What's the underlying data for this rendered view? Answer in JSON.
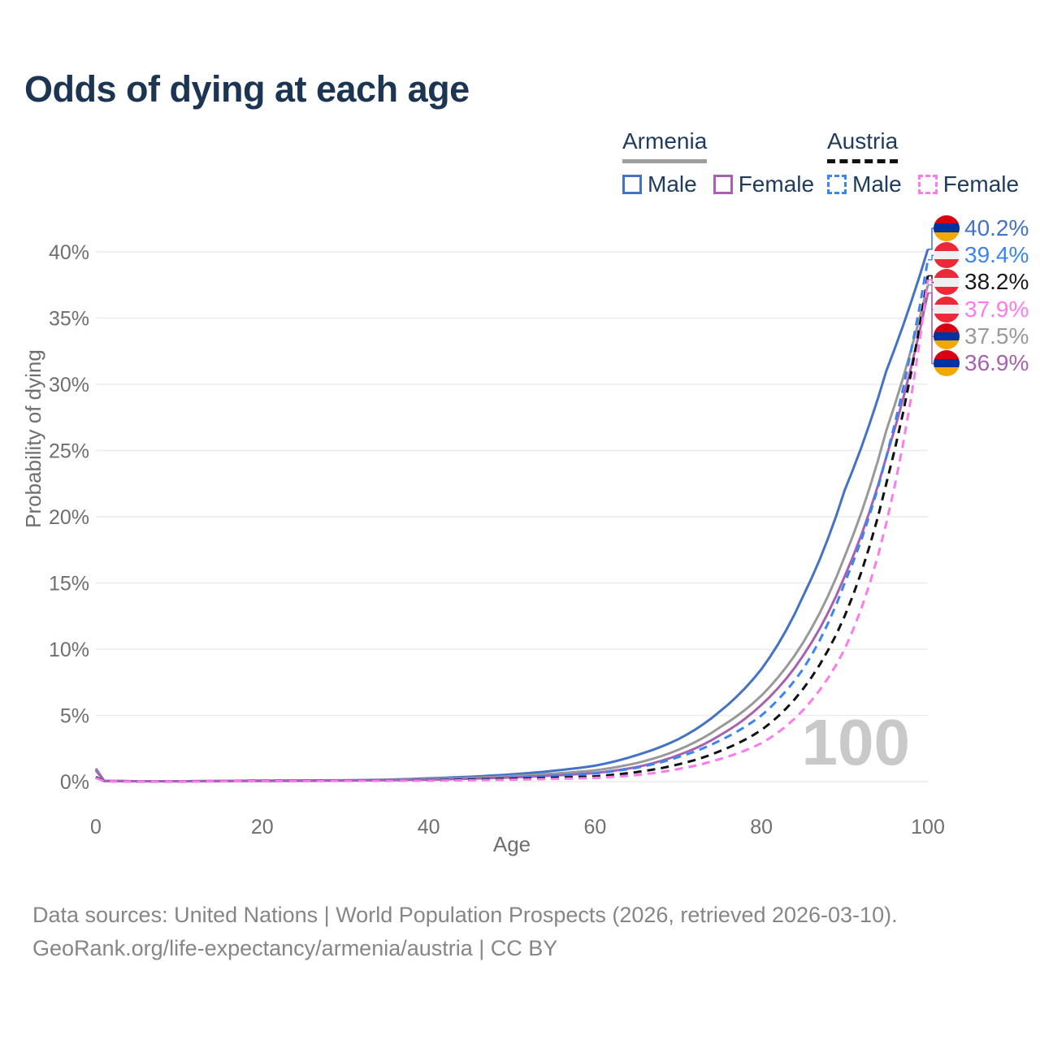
{
  "title": "Odds of dying at each age",
  "legend": {
    "groups": [
      {
        "label": "Armenia",
        "underline_style": "solid",
        "underline_color": "#9e9e9e",
        "items": [
          {
            "label": "Male",
            "color": "#4472C4",
            "style": "solid"
          },
          {
            "label": "Female",
            "color": "#A861B0",
            "style": "solid"
          }
        ]
      },
      {
        "label": "Austria",
        "underline_style": "dashed",
        "underline_color": "#111111",
        "items": [
          {
            "label": "Male",
            "color": "#3A84F4",
            "style": "dashed"
          },
          {
            "label": "Female",
            "color": "#FB7BEC",
            "style": "dashed"
          }
        ]
      }
    ]
  },
  "axes": {
    "x": {
      "label": "Age",
      "ticks": [
        0,
        20,
        40,
        60,
        80,
        100
      ],
      "range": [
        0,
        100
      ]
    },
    "y": {
      "label": "Probability of dying",
      "ticks": [
        0,
        5,
        10,
        15,
        20,
        25,
        30,
        35,
        40
      ],
      "tick_suffix": "%",
      "range": [
        0,
        40
      ]
    }
  },
  "watermark": "100",
  "flags": {
    "armenia": {
      "stripes": [
        "#D90012",
        "#0033A0",
        "#F2A800"
      ]
    },
    "austria": {
      "stripes": [
        "#ED2939",
        "#EFEFF1",
        "#ED2939"
      ]
    }
  },
  "chart_data": {
    "type": "line",
    "title": "Odds of dying at each age",
    "xlabel": "Age",
    "ylabel": "Probability of dying",
    "xlim": [
      0,
      100
    ],
    "ylim_percent": [
      0,
      40
    ],
    "grid": "horizontal",
    "legend_position": "top-right",
    "ages": [
      0,
      1,
      5,
      10,
      15,
      20,
      25,
      30,
      35,
      40,
      45,
      50,
      55,
      60,
      65,
      70,
      75,
      80,
      85,
      90,
      95,
      100
    ],
    "series": [
      {
        "id": "armenia-male",
        "name": "Armenia Male",
        "color": "#4472C4",
        "dash": false,
        "end_label": "40.2%",
        "values_percent": [
          0.98,
          0.06,
          0.03,
          0.03,
          0.05,
          0.08,
          0.09,
          0.1,
          0.15,
          0.25,
          0.37,
          0.55,
          0.82,
          1.2,
          2.0,
          3.2,
          5.3,
          8.5,
          14.0,
          22.0,
          31.0,
          40.2
        ]
      },
      {
        "id": "armenia-both",
        "name": "Armenia",
        "color": "#999999",
        "dash": false,
        "end_label": "37.5%",
        "values_percent": [
          0.92,
          0.055,
          0.028,
          0.028,
          0.045,
          0.065,
          0.075,
          0.09,
          0.13,
          0.2,
          0.28,
          0.42,
          0.6,
          0.85,
          1.4,
          2.4,
          4.1,
          6.5,
          10.5,
          17.0,
          26.5,
          37.5
        ]
      },
      {
        "id": "armenia-female",
        "name": "Armenia Female",
        "color": "#A861B0",
        "dash": false,
        "end_label": "36.9%",
        "values_percent": [
          0.85,
          0.05,
          0.025,
          0.025,
          0.04,
          0.05,
          0.06,
          0.08,
          0.11,
          0.15,
          0.22,
          0.32,
          0.46,
          0.65,
          1.1,
          2.0,
          3.5,
          5.8,
          9.5,
          15.5,
          24.5,
          36.9
        ]
      },
      {
        "id": "austria-male",
        "name": "Austria Male",
        "color": "#3A84F4",
        "dash": true,
        "end_label": "39.4%",
        "values_percent": [
          0.36,
          0.03,
          0.02,
          0.02,
          0.04,
          0.06,
          0.07,
          0.08,
          0.1,
          0.13,
          0.2,
          0.3,
          0.44,
          0.62,
          1.05,
          1.85,
          3.1,
          5.0,
          8.5,
          15.0,
          24.5,
          39.4
        ]
      },
      {
        "id": "austria-both",
        "name": "Austria",
        "color": "#111111",
        "dash": true,
        "end_label": "38.2%",
        "values_percent": [
          0.31,
          0.028,
          0.018,
          0.018,
          0.03,
          0.045,
          0.055,
          0.065,
          0.08,
          0.1,
          0.15,
          0.21,
          0.29,
          0.4,
          0.72,
          1.3,
          2.3,
          3.9,
          7.0,
          12.5,
          22.5,
          38.2
        ]
      },
      {
        "id": "austria-female",
        "name": "Austria Female",
        "color": "#FB7BEC",
        "dash": true,
        "end_label": "37.9%",
        "values_percent": [
          0.27,
          0.025,
          0.015,
          0.015,
          0.025,
          0.035,
          0.045,
          0.055,
          0.07,
          0.08,
          0.1,
          0.15,
          0.2,
          0.28,
          0.5,
          0.95,
          1.7,
          2.9,
          5.4,
          10.0,
          19.5,
          37.9
        ]
      }
    ]
  },
  "end_labels": [
    {
      "series": "armenia-male",
      "flag": "armenia",
      "text": "40.2%",
      "color": "#4472C4"
    },
    {
      "series": "austria-male",
      "flag": "austria",
      "text": "39.4%",
      "color": "#3A84F4"
    },
    {
      "series": "austria-both",
      "flag": "austria",
      "text": "38.2%",
      "color": "#1a1a1a"
    },
    {
      "series": "austria-female",
      "flag": "austria",
      "text": "37.9%",
      "color": "#FB7BEC"
    },
    {
      "series": "armenia-both",
      "flag": "armenia",
      "text": "37.5%",
      "color": "#9a9a9a"
    },
    {
      "series": "armenia-female",
      "flag": "armenia",
      "text": "36.9%",
      "color": "#A861B0"
    }
  ],
  "footer": {
    "line1": "Data sources: United Nations | World Population Prospects (2026, retrieved 2026-03-10).",
    "line2": "GeoRank.org/life-expectancy/armenia/austria | CC BY"
  },
  "colors": {
    "title": "#1b3553",
    "tick_text": "#6f6f6f",
    "gridline": "#ececec",
    "watermark": "#c9c9c9",
    "footer_text": "#868686"
  }
}
